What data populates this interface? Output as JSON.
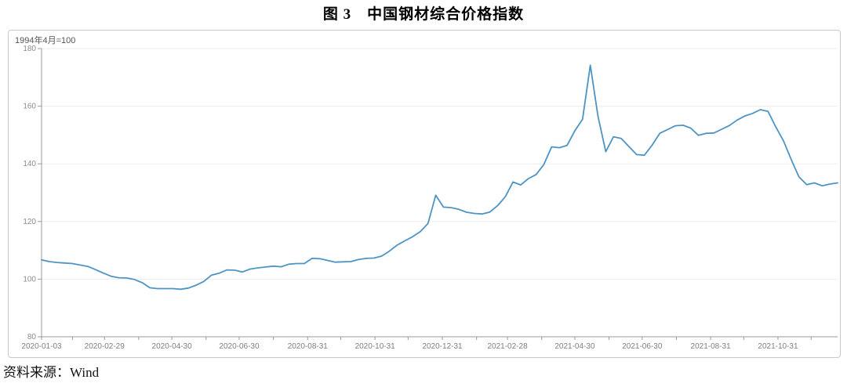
{
  "figure": {
    "title": "图 3　中国钢材综合价格指数",
    "index_base_label": "1994年4月=100",
    "source_label": "资料来源：Wind"
  },
  "chart_data": {
    "type": "line",
    "title": "中国钢材综合价格指数",
    "subtitle": "1994年4月=100",
    "frequency": "weekly",
    "start_date": "2020-01-03",
    "end_date": "2021-12-24",
    "total_days": 721,
    "ylim": [
      80,
      180
    ],
    "y_ticks": [
      80,
      100,
      120,
      140,
      160,
      180
    ],
    "grid": true,
    "legend": "none",
    "line_color": "#4d94c5",
    "axis_color": "#999999",
    "grid_color": "#ededed",
    "y_label_color": "#8c8c8c",
    "x_label_color": "#7f7f7f",
    "x_tick_labels": [
      "2020-01-03",
      "2020-02-29",
      "2020-04-30",
      "2020-06-30",
      "2020-08-31",
      "2020-10-31",
      "2020-12-31",
      "2021-02-28",
      "2021-04-30",
      "2021-06-30",
      "2021-08-31",
      "2021-10-31"
    ],
    "x_tick_day_offsets": [
      0,
      57,
      118,
      179,
      241,
      302,
      363,
      422,
      483,
      544,
      606,
      667
    ],
    "minor_tick_day_offsets": [
      0,
      28,
      57,
      88,
      118,
      149,
      179,
      210,
      241,
      271,
      302,
      332,
      363,
      394,
      422,
      453,
      483,
      514,
      544,
      575,
      606,
      636,
      667,
      697
    ],
    "values": [
      106.7,
      106.1,
      105.8,
      105.6,
      105.4,
      104.9,
      104.4,
      103.3,
      102.1,
      101.0,
      100.5,
      100.4,
      99.9,
      98.8,
      97.0,
      96.7,
      96.7,
      96.7,
      96.5,
      96.9,
      97.9,
      99.2,
      101.4,
      102.1,
      103.2,
      103.1,
      102.5,
      103.5,
      103.9,
      104.2,
      104.5,
      104.3,
      105.2,
      105.4,
      105.4,
      107.2,
      107.1,
      106.5,
      105.9,
      106.0,
      106.1,
      106.8,
      107.2,
      107.3,
      108.0,
      109.7,
      111.8,
      113.3,
      114.7,
      116.5,
      119.3,
      129.1,
      125.0,
      124.8,
      124.2,
      123.2,
      122.8,
      122.6,
      123.3,
      125.5,
      128.6,
      133.7,
      132.7,
      134.9,
      136.3,
      139.8,
      145.9,
      145.6,
      146.4,
      151.5,
      155.5,
      174.2,
      156.5,
      144.2,
      149.4,
      148.8,
      146.0,
      143.2,
      143.0,
      146.5,
      150.6,
      151.9,
      153.2,
      153.4,
      152.4,
      149.9,
      150.6,
      150.7,
      152.0,
      153.3,
      155.2,
      156.6,
      157.5,
      158.8,
      158.2,
      152.8,
      148.0,
      141.5,
      135.5,
      132.8,
      133.4,
      132.4,
      133.0,
      133.4
    ]
  }
}
